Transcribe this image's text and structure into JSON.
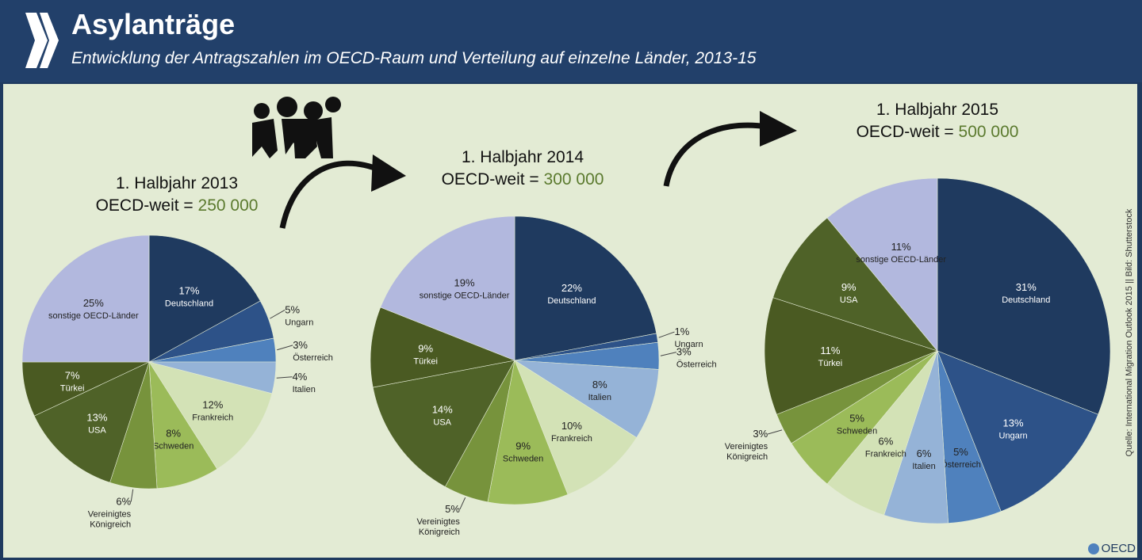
{
  "header": {
    "title": "Asylanträge",
    "subtitle": "Entwicklung der Antragszahlen im OECD-Raum und Verteilung auf einzelne Länder, 2013-15"
  },
  "source": "Quelle: International Migration Outlook 2015 || Bild: Shutterstock",
  "brand": "OECD",
  "colors": {
    "header": "#22406a",
    "background": "#e3ebd4",
    "total_accent": "#5b7a2e",
    "Deutschland": "#1f3a5f",
    "Ungarn": "#2d5288",
    "Österreich": "#4f81bd",
    "Italien": "#95b3d7",
    "Frankreich": "#d3e2b6",
    "Schweden": "#9bbb59",
    "Vereinigtes Königreich": "#77933c",
    "USA": "#4f6228",
    "Türkei": "#4a5a22",
    "sonstige OECD-Länder": "#b2b8de"
  },
  "chart_data": [
    {
      "type": "pie",
      "title": "1. Halbjahr 2013",
      "total_label": "OECD-weit = ",
      "total_value": "250 000",
      "categories": [
        "Deutschland",
        "Ungarn",
        "Österreich",
        "Italien",
        "Frankreich",
        "Schweden",
        "Vereinigtes Königreich",
        "USA",
        "Türkei",
        "sonstige OECD-Länder"
      ],
      "values": [
        17,
        5,
        3,
        4,
        12,
        8,
        6,
        13,
        7,
        25
      ],
      "unit": "%"
    },
    {
      "type": "pie",
      "title": "1. Halbjahr 2014",
      "total_label": "OECD-weit = ",
      "total_value": "300 000",
      "categories": [
        "Deutschland",
        "Ungarn",
        "Österreich",
        "Italien",
        "Frankreich",
        "Schweden",
        "Vereinigtes Königreich",
        "USA",
        "Türkei",
        "sonstige OECD-Länder"
      ],
      "values": [
        22,
        1,
        3,
        8,
        10,
        9,
        5,
        14,
        9,
        19
      ],
      "unit": "%"
    },
    {
      "type": "pie",
      "title": "1. Halbjahr 2015",
      "total_label": "OECD-weit = ",
      "total_value": "500 000",
      "categories": [
        "Deutschland",
        "Ungarn",
        "Österreich",
        "Italien",
        "Frankreich",
        "Schweden",
        "Vereinigtes Königreich",
        "Türkei",
        "USA",
        "sonstige OECD-Länder"
      ],
      "values": [
        31,
        13,
        5,
        6,
        6,
        5,
        3,
        11,
        9,
        11
      ],
      "unit": "%"
    }
  ]
}
